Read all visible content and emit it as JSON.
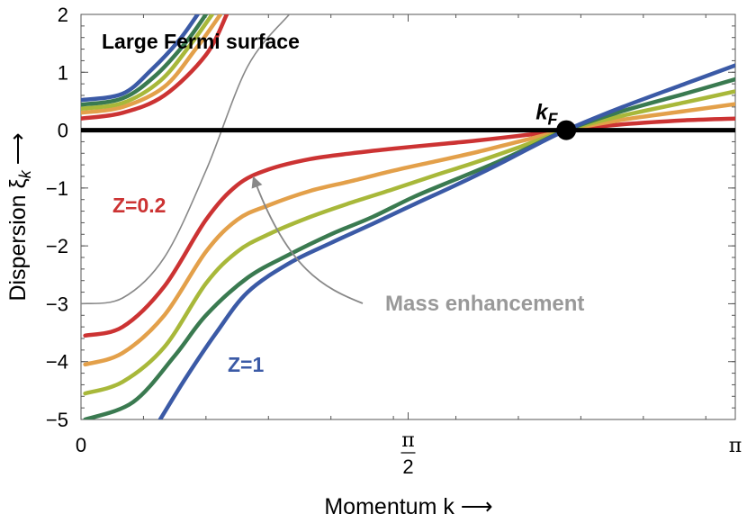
{
  "chart_data": {
    "type": "line",
    "title": "Large Fermi surface",
    "xlabel": "Momentum k ⟶",
    "ylabel": "Dispersion ξ",
    "ylabel_sub": "k",
    "ylabel_arrow": "⟶",
    "xlim": [
      0,
      3.14159
    ],
    "ylim": [
      -5,
      2
    ],
    "x_ticks": [
      {
        "value": 0,
        "label": "0"
      },
      {
        "value": 1.5708,
        "label_num": "π",
        "label_den": "2"
      },
      {
        "value": 3.14159,
        "label": "π"
      }
    ],
    "y_ticks": [
      {
        "value": 2,
        "label": "2"
      },
      {
        "value": 1,
        "label": "1"
      },
      {
        "value": 0,
        "label": "0"
      },
      {
        "value": -1,
        "label": "−1"
      },
      {
        "value": -2,
        "label": "−2"
      },
      {
        "value": -3,
        "label": "−3"
      },
      {
        "value": -4,
        "label": "−4"
      },
      {
        "value": -5,
        "label": "−5"
      }
    ],
    "kF": 2.33,
    "kF_label": "k",
    "kF_label_sub": "F",
    "bare_dispersion": {
      "color": "#888888",
      "x": [
        0,
        0.2,
        0.4,
        0.6,
        0.8,
        1.0
      ],
      "y": [
        -3.0,
        -2.9,
        -2.2,
        -0.7,
        1.1,
        2.0
      ]
    },
    "series": [
      {
        "color": "#cc3333",
        "x": [
          0.02,
          0.2,
          0.4,
          0.6,
          0.75,
          0.9,
          1.1,
          1.3,
          1.5,
          1.7,
          1.9,
          2.1,
          2.33,
          2.6,
          2.9,
          3.14159
        ],
        "y": [
          -3.55,
          -3.4,
          -2.7,
          -1.55,
          -0.95,
          -0.68,
          -0.5,
          -0.4,
          -0.32,
          -0.25,
          -0.18,
          -0.1,
          0,
          0.1,
          0.17,
          0.2
        ]
      },
      {
        "color": "#e3a04a",
        "x": [
          0.02,
          0.2,
          0.4,
          0.6,
          0.75,
          0.9,
          1.1,
          1.3,
          1.5,
          1.7,
          1.9,
          2.1,
          2.33,
          2.6,
          2.9,
          3.14159
        ],
        "y": [
          -4.05,
          -3.85,
          -3.2,
          -2.1,
          -1.55,
          -1.3,
          -1.05,
          -0.88,
          -0.7,
          -0.54,
          -0.38,
          -0.2,
          0,
          0.18,
          0.33,
          0.45
        ]
      },
      {
        "color": "#a8b83a",
        "x": [
          0.02,
          0.2,
          0.4,
          0.6,
          0.75,
          0.9,
          1.1,
          1.3,
          1.5,
          1.7,
          1.9,
          2.1,
          2.33,
          2.6,
          2.9,
          3.14159
        ],
        "y": [
          -4.55,
          -4.35,
          -3.75,
          -2.65,
          -2.1,
          -1.8,
          -1.5,
          -1.25,
          -1.02,
          -0.78,
          -0.55,
          -0.3,
          0,
          0.25,
          0.48,
          0.67
        ]
      },
      {
        "color": "#3a7a50",
        "x": [
          0.02,
          0.25,
          0.45,
          0.6,
          0.8,
          1.0,
          1.2,
          1.4,
          1.6,
          1.8,
          2.0,
          2.15,
          2.33,
          2.6,
          2.9,
          3.14159
        ],
        "y": [
          -5.0,
          -4.7,
          -3.9,
          -3.2,
          -2.55,
          -2.15,
          -1.8,
          -1.5,
          -1.15,
          -0.85,
          -0.55,
          -0.3,
          0,
          0.33,
          0.63,
          0.88
        ]
      },
      {
        "color": "#3b5aa6",
        "x": [
          0.38,
          0.5,
          0.65,
          0.8,
          1.0,
          1.2,
          1.4,
          1.6,
          1.8,
          2.0,
          2.15,
          2.33,
          2.6,
          2.9,
          3.14159
        ],
        "y": [
          -5.0,
          -4.3,
          -3.5,
          -2.8,
          -2.3,
          -1.95,
          -1.62,
          -1.28,
          -0.95,
          -0.6,
          -0.32,
          0,
          0.4,
          0.8,
          1.12
        ]
      }
    ],
    "upper_branches": [
      {
        "color": "#cc3333",
        "x": [
          0,
          0.2,
          0.4,
          0.6,
          0.7
        ],
        "y": [
          0.2,
          0.3,
          0.6,
          1.3,
          2.0
        ]
      },
      {
        "color": "#e3a04a",
        "x": [
          0,
          0.2,
          0.4,
          0.55,
          0.67
        ],
        "y": [
          0.3,
          0.4,
          0.75,
          1.4,
          2.0
        ]
      },
      {
        "color": "#a8b83a",
        "x": [
          0,
          0.2,
          0.38,
          0.52,
          0.63
        ],
        "y": [
          0.37,
          0.47,
          0.85,
          1.45,
          2.0
        ]
      },
      {
        "color": "#3a7a50",
        "x": [
          0,
          0.2,
          0.36,
          0.5,
          0.6
        ],
        "y": [
          0.44,
          0.55,
          0.95,
          1.5,
          2.0
        ]
      },
      {
        "color": "#3b5aa6",
        "x": [
          0,
          0.2,
          0.34,
          0.47,
          0.56
        ],
        "y": [
          0.52,
          0.63,
          1.05,
          1.55,
          2.0
        ]
      }
    ],
    "annotations": [
      {
        "name": "z-small-label",
        "text": "Z=0.2",
        "color": "#cc3333"
      },
      {
        "name": "z-one-label",
        "text": "Z=1",
        "color": "#3b5aa6"
      },
      {
        "name": "mass-enhancement-label",
        "text": "Mass enhancement",
        "color": "#999999"
      }
    ]
  }
}
